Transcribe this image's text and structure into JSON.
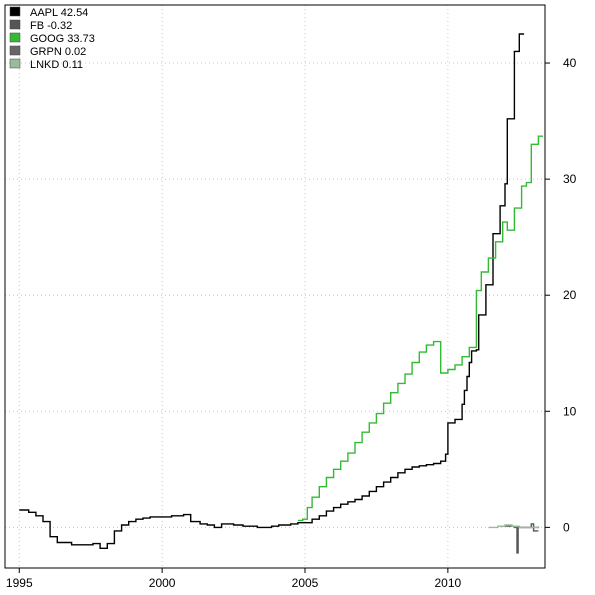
{
  "chart_data": {
    "type": "line",
    "step": true,
    "grid": true,
    "grid_style": "dotted",
    "legend_placement": "top-left",
    "colors": {
      "grid": "#c8c8c8",
      "axis": "#000000",
      "background": "#ffffff"
    },
    "xlim": [
      1994.5,
      2013.4
    ],
    "ylim": [
      -3.5,
      45.0
    ],
    "x_ticks": [
      1995,
      2000,
      2005,
      2010
    ],
    "x_tick_labels": [
      "1995",
      "2000",
      "2005",
      "2010"
    ],
    "y_ticks": [
      0,
      10,
      20,
      30,
      40
    ],
    "y_tick_labels": [
      "0",
      "10",
      "20",
      "30",
      "40"
    ],
    "y_axis_side": "right",
    "legend": [
      {
        "label": "AAPL 42.54",
        "color": "#000000"
      },
      {
        "label": "FB -0.32",
        "color": "#555555"
      },
      {
        "label": "GOOG 33.73",
        "color": "#33bb33"
      },
      {
        "label": "GRPN  0.02",
        "color": "#666666"
      },
      {
        "label": "LNKD  0.11",
        "color": "#99bb99"
      }
    ],
    "series": [
      {
        "name": "AAPL",
        "color": "#000000",
        "points": [
          [
            1995.0,
            1.5
          ],
          [
            1995.33,
            1.3
          ],
          [
            1995.58,
            1.0
          ],
          [
            1995.83,
            0.5
          ],
          [
            1996.08,
            -0.8
          ],
          [
            1996.33,
            -1.3
          ],
          [
            1996.83,
            -1.5
          ],
          [
            1997.58,
            -1.4
          ],
          [
            1997.83,
            -1.8
          ],
          [
            1998.08,
            -1.4
          ],
          [
            1998.33,
            -0.3
          ],
          [
            1998.58,
            0.2
          ],
          [
            1998.83,
            0.5
          ],
          [
            1999.08,
            0.7
          ],
          [
            1999.33,
            0.8
          ],
          [
            1999.58,
            0.9
          ],
          [
            2000.0,
            0.9
          ],
          [
            2000.33,
            1.0
          ],
          [
            2000.75,
            1.1
          ],
          [
            2001.0,
            0.5
          ],
          [
            2001.33,
            0.3
          ],
          [
            2001.58,
            0.2
          ],
          [
            2001.83,
            0.0
          ],
          [
            2002.08,
            0.3
          ],
          [
            2002.5,
            0.2
          ],
          [
            2002.83,
            0.1
          ],
          [
            2003.33,
            0.0
          ],
          [
            2003.83,
            0.1
          ],
          [
            2004.08,
            0.2
          ],
          [
            2004.5,
            0.3
          ],
          [
            2004.75,
            0.4
          ],
          [
            2005.0,
            0.4
          ],
          [
            2005.25,
            0.7
          ],
          [
            2005.5,
            1.0
          ],
          [
            2005.75,
            1.4
          ],
          [
            2006.0,
            1.7
          ],
          [
            2006.25,
            2.0
          ],
          [
            2006.5,
            2.2
          ],
          [
            2006.75,
            2.4
          ],
          [
            2007.0,
            2.7
          ],
          [
            2007.25,
            3.1
          ],
          [
            2007.5,
            3.5
          ],
          [
            2007.75,
            3.9
          ],
          [
            2008.0,
            4.3
          ],
          [
            2008.25,
            4.7
          ],
          [
            2008.5,
            5.0
          ],
          [
            2008.75,
            5.2
          ],
          [
            2009.0,
            5.3
          ],
          [
            2009.25,
            5.4
          ],
          [
            2009.5,
            5.5
          ],
          [
            2009.75,
            5.7
          ],
          [
            2009.92,
            6.3
          ],
          [
            2010.0,
            9.0
          ],
          [
            2010.25,
            9.3
          ],
          [
            2010.5,
            10.6
          ],
          [
            2010.58,
            11.8
          ],
          [
            2010.67,
            13.0
          ],
          [
            2010.75,
            14.2
          ],
          [
            2010.83,
            15.2
          ],
          [
            2011.0,
            15.3
          ],
          [
            2011.08,
            18.3
          ],
          [
            2011.33,
            20.9
          ],
          [
            2011.58,
            25.3
          ],
          [
            2011.83,
            27.7
          ],
          [
            2012.0,
            29.6
          ],
          [
            2012.08,
            35.2
          ],
          [
            2012.33,
            41.0
          ],
          [
            2012.5,
            42.5
          ],
          [
            2012.67,
            42.5
          ]
        ]
      },
      {
        "name": "GOOG",
        "color": "#33bb33",
        "points": [
          [
            2004.75,
            0.6
          ],
          [
            2004.92,
            0.7
          ],
          [
            2005.08,
            1.7
          ],
          [
            2005.25,
            2.6
          ],
          [
            2005.5,
            3.5
          ],
          [
            2005.75,
            4.3
          ],
          [
            2006.0,
            5.0
          ],
          [
            2006.25,
            5.7
          ],
          [
            2006.5,
            6.4
          ],
          [
            2006.75,
            7.3
          ],
          [
            2007.0,
            8.2
          ],
          [
            2007.25,
            9.0
          ],
          [
            2007.5,
            9.8
          ],
          [
            2007.75,
            10.7
          ],
          [
            2008.0,
            11.6
          ],
          [
            2008.25,
            12.4
          ],
          [
            2008.5,
            13.2
          ],
          [
            2008.75,
            14.2
          ],
          [
            2009.0,
            15.1
          ],
          [
            2009.25,
            15.7
          ],
          [
            2009.5,
            16.0
          ],
          [
            2009.75,
            13.3
          ],
          [
            2010.0,
            13.6
          ],
          [
            2010.25,
            14.0
          ],
          [
            2010.5,
            14.7
          ],
          [
            2010.75,
            15.5
          ],
          [
            2011.0,
            20.4
          ],
          [
            2011.17,
            22.0
          ],
          [
            2011.42,
            23.2
          ],
          [
            2011.67,
            24.6
          ],
          [
            2011.92,
            26.3
          ],
          [
            2012.08,
            25.6
          ],
          [
            2012.33,
            27.5
          ],
          [
            2012.58,
            29.4
          ],
          [
            2012.75,
            29.7
          ],
          [
            2012.92,
            33.0
          ],
          [
            2013.17,
            33.7
          ],
          [
            2013.33,
            33.7
          ]
        ]
      },
      {
        "name": "FB",
        "color": "#555555",
        "points": [
          [
            2012.38,
            0.0
          ],
          [
            2012.42,
            -2.2
          ],
          [
            2012.46,
            0.0
          ],
          [
            2012.6,
            0.0
          ],
          [
            2012.75,
            0.0
          ],
          [
            2012.92,
            0.3
          ],
          [
            2013.0,
            -0.3
          ],
          [
            2013.17,
            -0.3
          ]
        ]
      },
      {
        "name": "GRPN",
        "color": "#666666",
        "points": [
          [
            2011.83,
            0.1
          ],
          [
            2012.08,
            0.1
          ],
          [
            2012.33,
            0.0
          ],
          [
            2012.58,
            0.0
          ],
          [
            2012.83,
            0.0
          ],
          [
            2013.17,
            0.02
          ]
        ]
      },
      {
        "name": "LNKD",
        "color": "#99bb99",
        "points": [
          [
            2011.42,
            0.0
          ],
          [
            2011.75,
            0.1
          ],
          [
            2012.0,
            0.2
          ],
          [
            2012.25,
            0.1
          ],
          [
            2012.5,
            0.0
          ],
          [
            2012.75,
            0.0
          ],
          [
            2013.17,
            0.11
          ]
        ]
      }
    ]
  }
}
